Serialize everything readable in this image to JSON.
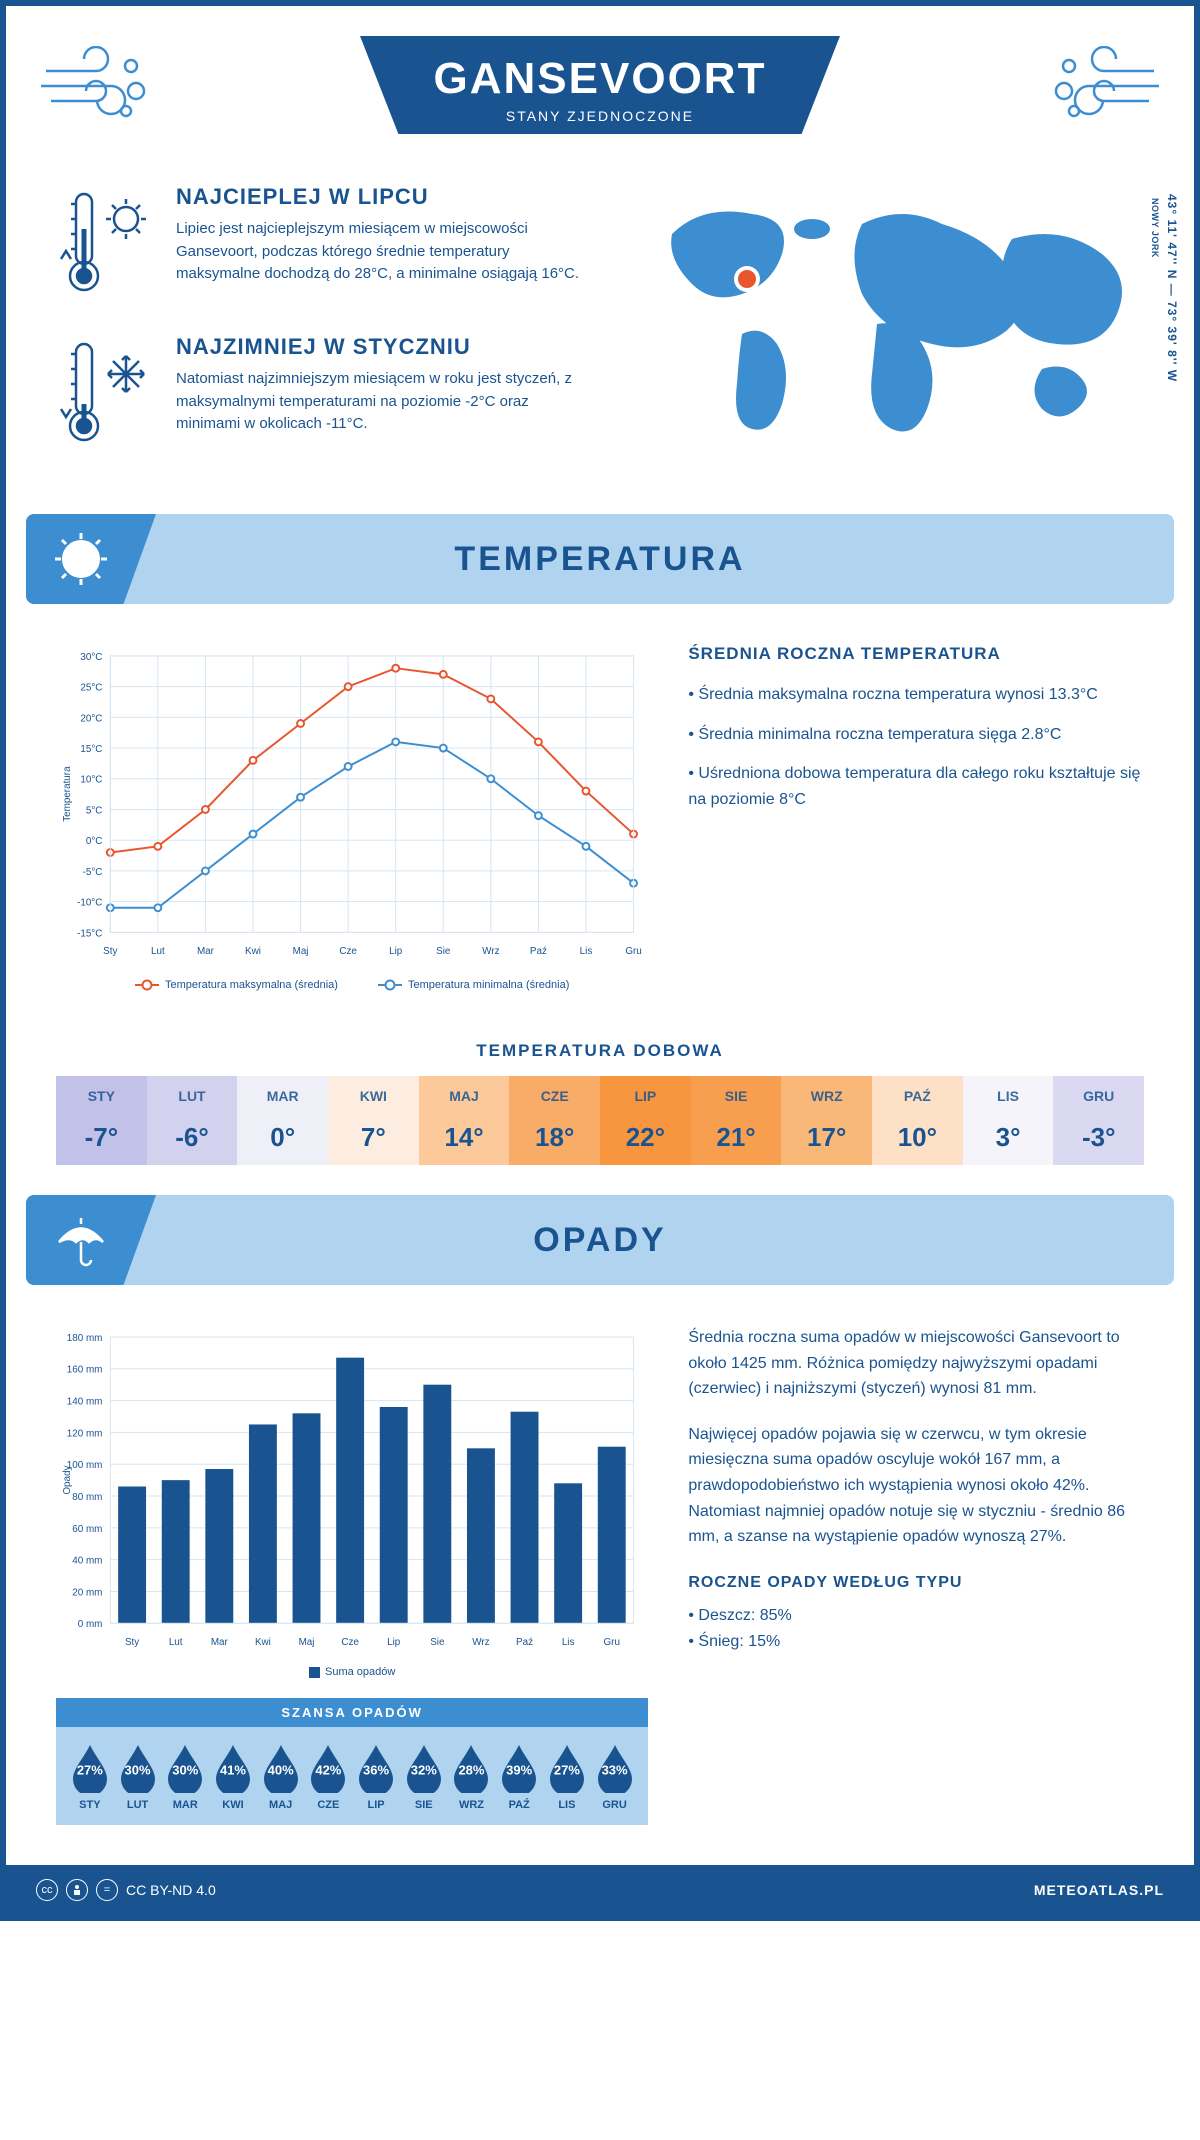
{
  "header": {
    "title": "GANSEVOORT",
    "subtitle": "STANY ZJEDNOCZONE"
  },
  "coords": {
    "main": "43° 11' 47'' N — 73° 39' 8'' W",
    "sub": "NOWY JORK"
  },
  "facts": {
    "hot": {
      "title": "NAJCIEPLEJ W LIPCU",
      "text": "Lipiec jest najcieplejszym miesiącem w miejscowości Gansevoort, podczas którego średnie temperatury maksymalne dochodzą do 28°C, a minimalne osiągają 16°C."
    },
    "cold": {
      "title": "NAJZIMNIEJ W STYCZNIU",
      "text": "Natomiast najzimniejszym miesiącem w roku jest styczeń, z maksymalnymi temperaturami na poziomie -2°C oraz minimami w okolicach -11°C."
    }
  },
  "colors": {
    "primary": "#1a5490",
    "accent1": "#3d8ed1",
    "light": "#b0d4f0",
    "grid": "#d5e5f2",
    "max_line": "#e8552f",
    "min_line": "#3d8ed1",
    "bar": "#1a5490",
    "drop": "#1a5490",
    "white": "#ffffff"
  },
  "temp_section": {
    "title": "TEMPERATURA"
  },
  "temp_chart": {
    "type": "line",
    "ylabel": "Temperatura",
    "months": [
      "Sty",
      "Lut",
      "Mar",
      "Kwi",
      "Maj",
      "Cze",
      "Lip",
      "Sie",
      "Wrz",
      "Paź",
      "Lis",
      "Gru"
    ],
    "max_values": [
      -2,
      -1,
      5,
      13,
      19,
      25,
      28,
      27,
      23,
      16,
      8,
      1
    ],
    "min_values": [
      -11,
      -11,
      -5,
      1,
      7,
      12,
      16,
      15,
      10,
      4,
      -1,
      -7
    ],
    "ylim": [
      -15,
      30
    ],
    "ytick_step": 5,
    "legend_max": "Temperatura maksymalna (średnia)",
    "legend_min": "Temperatura minimalna (średnia)"
  },
  "temp_info": {
    "title": "ŚREDNIA ROCZNA TEMPERATURA",
    "b1": "• Średnia maksymalna roczna temperatura wynosi 13.3°C",
    "b2": "• Średnia minimalna roczna temperatura sięga 2.8°C",
    "b3": "• Uśredniona dobowa temperatura dla całego roku kształtuje się na poziomie 8°C"
  },
  "daily": {
    "title": "TEMPERATURA DOBOWA",
    "months": [
      "STY",
      "LUT",
      "MAR",
      "KWI",
      "MAJ",
      "CZE",
      "LIP",
      "SIE",
      "WRZ",
      "PAŹ",
      "LIS",
      "GRU"
    ],
    "values": [
      "-7°",
      "-6°",
      "0°",
      "7°",
      "14°",
      "18°",
      "22°",
      "21°",
      "17°",
      "10°",
      "3°",
      "-3°"
    ],
    "bg_colors": [
      "#c2c1e8",
      "#d3d2ee",
      "#efeff8",
      "#fdece0",
      "#fbc99a",
      "#f9ab68",
      "#f7963e",
      "#f89e4f",
      "#fab878",
      "#fde0c6",
      "#f4f4fa",
      "#dad9f1"
    ]
  },
  "precip_section": {
    "title": "OPADY"
  },
  "precip_chart": {
    "type": "bar",
    "ylabel": "Opady",
    "months": [
      "Sty",
      "Lut",
      "Mar",
      "Kwi",
      "Maj",
      "Cze",
      "Lip",
      "Sie",
      "Wrz",
      "Paź",
      "Lis",
      "Gru"
    ],
    "values": [
      86,
      90,
      97,
      125,
      132,
      167,
      136,
      150,
      110,
      133,
      88,
      111
    ],
    "ylim": [
      0,
      180
    ],
    "ytick_step": 20,
    "legend": "Suma opadów"
  },
  "precip_info": {
    "p1": "Średnia roczna suma opadów w miejscowości Gansevoort to około 1425 mm. Różnica pomiędzy najwyższymi opadami (czerwiec) i najniższymi (styczeń) wynosi 81 mm.",
    "p2": "Najwięcej opadów pojawia się w czerwcu, w tym okresie miesięczna suma opadów oscyluje wokół 167 mm, a prawdopodobieństwo ich wystąpienia wynosi około 42%. Natomiast najmniej opadów notuje się w styczniu - średnio 86 mm, a szanse na wystąpienie opadów wynoszą 27%.",
    "type_title": "ROCZNE OPADY WEDŁUG TYPU",
    "type1": "• Deszcz: 85%",
    "type2": "• Śnieg: 15%"
  },
  "chance": {
    "title": "SZANSA OPADÓW",
    "months": [
      "STY",
      "LUT",
      "MAR",
      "KWI",
      "MAJ",
      "CZE",
      "LIP",
      "SIE",
      "WRZ",
      "PAŹ",
      "LIS",
      "GRU"
    ],
    "pct": [
      "27%",
      "30%",
      "30%",
      "41%",
      "40%",
      "42%",
      "36%",
      "32%",
      "28%",
      "39%",
      "27%",
      "33%"
    ]
  },
  "footer": {
    "license": "CC BY-ND 4.0",
    "brand": "METEOATLAS.PL"
  }
}
